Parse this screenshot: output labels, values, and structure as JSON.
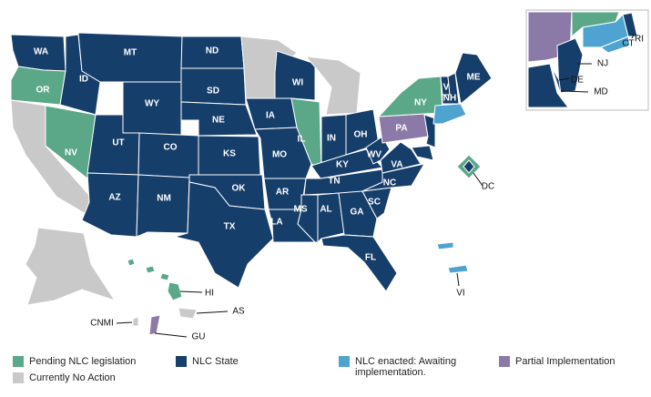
{
  "legend": [
    {
      "label": "Pending NLC legislation",
      "color": "#5ba889",
      "regions": [
        "OR",
        "NV",
        "IL",
        "NY",
        "HI"
      ]
    },
    {
      "label": "Currently No Action",
      "color": "#c9c9c9",
      "regions": [
        "CNMI",
        "AS"
      ]
    },
    {
      "label": "NLC State",
      "color": "#163e6a",
      "regions": [
        "WA",
        "ID",
        "MT",
        "WY",
        "UT",
        "CO",
        "AZ",
        "NM",
        "ND",
        "SD",
        "NE",
        "KS",
        "OK",
        "TX",
        "IA",
        "MO",
        "AR",
        "LA",
        "WI",
        "IN",
        "OH",
        "KY",
        "TN",
        "MS",
        "AL",
        "GA",
        "FL",
        "SC",
        "NC",
        "VA",
        "WV",
        "VT",
        "NH",
        "ME",
        "NJ",
        "DE",
        "MD",
        "DC",
        "RI"
      ]
    },
    {
      "label": "NLC enacted: Awaiting implementation.",
      "color": "#4fa3d1",
      "regions": [
        "VI",
        "CT"
      ]
    },
    {
      "label": "Partial Implementation",
      "color": "#8b7aa8",
      "regions": [
        "PA",
        "GU"
      ]
    }
  ]
}
